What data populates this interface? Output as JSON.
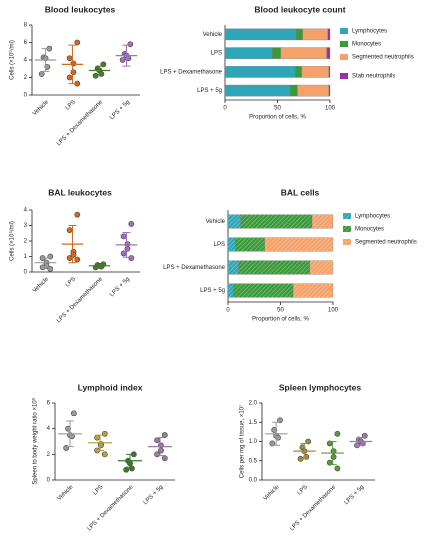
{
  "chart_data": [
    {
      "type": "dot",
      "title": "Blood leukocytes",
      "y_label": "Cells (×10⁹/ml)",
      "categories": [
        "Vehicle",
        "LPS",
        "LPS + Dexamethasone",
        "LPS + 5g"
      ],
      "points": [
        [
          5.3,
          4.3,
          4.2,
          3.2,
          2.4
        ],
        [
          6.0,
          4.2,
          3.6,
          2.6,
          2.0,
          1.3
        ],
        [
          3.5,
          3.0,
          2.8,
          2.4,
          2.2
        ],
        [
          5.8,
          4.7,
          4.5,
          4.2,
          4.0
        ]
      ],
      "means": [
        4.0,
        3.5,
        2.8,
        4.5
      ],
      "sds": [
        1.3,
        2.2,
        0.5,
        1.2
      ],
      "colors": [
        "#9a9a9a",
        "#d2691e",
        "#4a7a2a",
        "#a070c0"
      ],
      "ylim": [
        0,
        8
      ],
      "yticks": [
        0,
        2,
        4,
        6,
        8
      ]
    },
    {
      "type": "bar",
      "orientation": "horizontal",
      "stacked": true,
      "hatch": false,
      "title": "Blood leukocyte count",
      "x_label": "Proportion of cells, %",
      "categories": [
        "Vehicle",
        "LPS",
        "LPS + Dexamethasone",
        "LPS + 5g"
      ],
      "series": [
        {
          "name": "Lymphocytes",
          "color": "#2fa5b8",
          "values": [
            68,
            45,
            67,
            62
          ]
        },
        {
          "name": "Monocytes",
          "color": "#3a9a3a",
          "values": [
            6,
            8,
            6,
            7
          ]
        },
        {
          "name": "Segmented neutrophils",
          "color": "#f4a26a",
          "values": [
            24,
            44,
            26,
            30
          ]
        },
        {
          "name": "Stab neutrophils",
          "color": "#9b30a8",
          "values": [
            2,
            3,
            1,
            1
          ]
        }
      ],
      "xlim": [
        0,
        100
      ],
      "xticks": [
        0,
        50,
        100
      ]
    },
    {
      "type": "dot",
      "title": "BAL leukocytes",
      "y_label": "Cells (×10⁵/ml)",
      "categories": [
        "Vehicle",
        "LPS",
        "LPS + Dexamethasone",
        "LPS + 5g"
      ],
      "points": [
        [
          1.0,
          0.9,
          0.6,
          0.4,
          0.3,
          0.2
        ],
        [
          3.7,
          2.7,
          1.3,
          1.1,
          0.9,
          0.8
        ],
        [
          0.5,
          0.45,
          0.4,
          0.35,
          0.3
        ],
        [
          3.1,
          2.3,
          1.8,
          1.5,
          1.2,
          0.9
        ]
      ],
      "means": [
        0.6,
        1.8,
        0.4,
        1.75
      ],
      "sds": [
        0.3,
        1.2,
        0.1,
        0.8
      ],
      "colors": [
        "#9a9a9a",
        "#d2691e",
        "#4a7a2a",
        "#a070c0"
      ],
      "ylim": [
        0,
        4
      ],
      "yticks": [
        0,
        1,
        2,
        3,
        4
      ]
    },
    {
      "type": "bar",
      "orientation": "horizontal",
      "stacked": true,
      "hatch": true,
      "title": "BAL cells",
      "x_label": "Proportion of cells, %",
      "categories": [
        "Vehicle",
        "LPS",
        "LPS + Dexamethasone",
        "LPS + 5g"
      ],
      "series": [
        {
          "name": "Lymphocytes",
          "color": "#2fa5b8",
          "values": [
            12,
            7,
            10,
            5
          ]
        },
        {
          "name": "Monocytes",
          "color": "#3a9a3a",
          "values": [
            68,
            28,
            68,
            57
          ]
        },
        {
          "name": "Segmented neutrophils",
          "color": "#f4a26a",
          "values": [
            20,
            65,
            22,
            38
          ]
        }
      ],
      "xlim": [
        0,
        100
      ],
      "xticks": [
        0,
        50,
        100
      ]
    },
    {
      "type": "dot",
      "title": "Lymphoid index",
      "y_label": "Spleen to body weight ratio ×10³",
      "categories": [
        "Vehicle",
        "LPS",
        "LPS + Dexamethasone",
        "LPS + 5g"
      ],
      "points": [
        [
          5.2,
          4.0,
          3.5,
          3.4,
          2.5
        ],
        [
          3.6,
          3.3,
          2.8,
          2.7,
          2.3,
          2.0
        ],
        [
          2.0,
          1.5,
          1.3,
          0.9,
          0.8
        ],
        [
          3.5,
          3.1,
          2.7,
          2.3,
          2.0,
          1.7
        ]
      ],
      "means": [
        3.6,
        2.9,
        1.5,
        2.6
      ],
      "sds": [
        1.0,
        0.6,
        0.5,
        0.7
      ],
      "colors": [
        "#9a9a9a",
        "#b8a040",
        "#3a7a2a",
        "#9a7aa0"
      ],
      "ylim": [
        0,
        6
      ],
      "yticks": [
        0,
        2,
        4,
        6
      ]
    },
    {
      "type": "dot",
      "title": "Spleen lymphocytes",
      "y_label": "Cells per mg of tissue, ×10⁷",
      "categories": [
        "Vehicle",
        "LPS",
        "LPS + Dexamethasone",
        "LPS + 5g"
      ],
      "points": [
        [
          1.55,
          1.3,
          1.15,
          1.1,
          0.95
        ],
        [
          1.0,
          0.85,
          0.75,
          0.6,
          0.55
        ],
        [
          1.2,
          0.95,
          0.75,
          0.6,
          0.45,
          0.3
        ],
        [
          1.15,
          1.05,
          1.0,
          0.95,
          0.9
        ]
      ],
      "means": [
        1.2,
        0.75,
        0.7,
        1.0
      ],
      "sds": [
        0.3,
        0.2,
        0.3,
        0.1
      ],
      "colors": [
        "#9a9a9a",
        "#a08a40",
        "#5a9a3a",
        "#9a7ab0"
      ],
      "ylim": [
        0,
        2
      ],
      "yticks": [
        {
          "value": 0,
          "label": "0.0"
        },
        {
          "value": 0.5,
          "label": "0.5"
        },
        {
          "value": 1,
          "label": "1.0"
        },
        {
          "value": 1.5,
          "label": "1.5"
        },
        {
          "value": 2,
          "label": "2.0"
        }
      ]
    }
  ]
}
